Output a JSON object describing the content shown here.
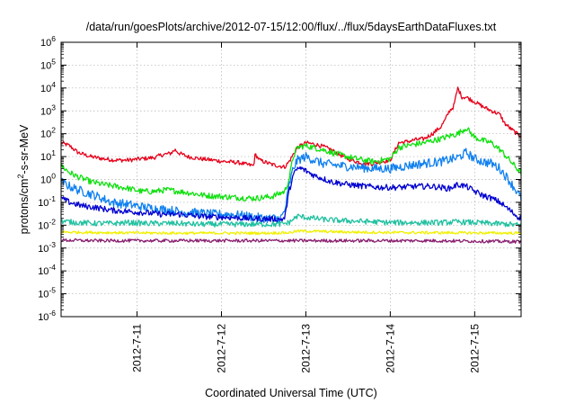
{
  "chart_data": {
    "type": "line",
    "title": "/data/run/goesPlots/archive/2012-07-15/12:00/flux/../flux/5daysEarthDataFluxes.txt",
    "xlabel": "Coordinated Universal Time (UTC)",
    "ylabel": {
      "pre": "protons/cm",
      "sup": "2",
      "post": "-s-sr-MeV"
    },
    "yscale": "log",
    "ylim": [
      1e-06,
      1000000.0
    ],
    "xlim": [
      10.1,
      15.55
    ],
    "grid": true,
    "y_ticks": [
      {
        "value": 1e-06,
        "mant": "10",
        "exp": "-6"
      },
      {
        "value": 1e-05,
        "mant": "10",
        "exp": "-5"
      },
      {
        "value": 0.0001,
        "mant": "10",
        "exp": "-4"
      },
      {
        "value": 0.001,
        "mant": "10",
        "exp": "-3"
      },
      {
        "value": 0.01,
        "mant": "10",
        "exp": "-2"
      },
      {
        "value": 0.1,
        "mant": "10",
        "exp": "-1"
      },
      {
        "value": 1,
        "mant": "10",
        "exp": "0"
      },
      {
        "value": 10.0,
        "mant": "10",
        "exp": "1"
      },
      {
        "value": 100.0,
        "mant": "10",
        "exp": "2"
      },
      {
        "value": 1000.0,
        "mant": "10",
        "exp": "3"
      },
      {
        "value": 10000.0,
        "mant": "10",
        "exp": "4"
      },
      {
        "value": 100000.0,
        "mant": "10",
        "exp": "5"
      },
      {
        "value": 1000000.0,
        "mant": "10",
        "exp": "6"
      }
    ],
    "x_ticks": [
      {
        "value": 11,
        "label": "2012-7-11"
      },
      {
        "value": 12,
        "label": "2012-7-12"
      },
      {
        "value": 13,
        "label": "2012-7-13"
      },
      {
        "value": 14,
        "label": "2012-7-14"
      },
      {
        "value": 15,
        "label": "2012-7-15"
      }
    ],
    "series": [
      {
        "color": "#e6001a",
        "noise": 0.09,
        "points": [
          [
            10.1,
            40
          ],
          [
            10.2,
            30
          ],
          [
            10.3,
            15
          ],
          [
            10.45,
            10
          ],
          [
            10.6,
            8
          ],
          [
            10.75,
            7
          ],
          [
            10.9,
            7
          ],
          [
            11.05,
            8
          ],
          [
            11.2,
            9
          ],
          [
            11.3,
            12
          ],
          [
            11.4,
            14
          ],
          [
            11.45,
            20
          ],
          [
            11.5,
            14
          ],
          [
            11.6,
            10
          ],
          [
            11.75,
            8
          ],
          [
            11.9,
            7
          ],
          [
            12.05,
            6
          ],
          [
            12.2,
            5.5
          ],
          [
            12.3,
            4.5
          ],
          [
            12.38,
            4
          ],
          [
            12.4,
            13
          ],
          [
            12.45,
            7
          ],
          [
            12.6,
            4.5
          ],
          [
            12.75,
            3.5
          ],
          [
            12.8,
            6
          ],
          [
            12.9,
            25
          ],
          [
            13.0,
            40
          ],
          [
            13.1,
            35
          ],
          [
            13.2,
            28
          ],
          [
            13.3,
            20
          ],
          [
            13.4,
            12
          ],
          [
            13.5,
            8
          ],
          [
            13.6,
            6
          ],
          [
            13.7,
            5
          ],
          [
            13.8,
            5
          ],
          [
            13.9,
            6
          ],
          [
            14.0,
            7
          ],
          [
            14.1,
            40
          ],
          [
            14.2,
            45
          ],
          [
            14.3,
            55
          ],
          [
            14.4,
            60
          ],
          [
            14.5,
            100
          ],
          [
            14.6,
            200
          ],
          [
            14.65,
            400
          ],
          [
            14.7,
            1000
          ],
          [
            14.75,
            1500
          ],
          [
            14.8,
            10000
          ],
          [
            14.85,
            4000
          ],
          [
            14.9,
            4000
          ],
          [
            15.0,
            2500
          ],
          [
            15.1,
            1500
          ],
          [
            15.2,
            1000
          ],
          [
            15.3,
            700
          ],
          [
            15.35,
            300
          ],
          [
            15.4,
            200
          ],
          [
            15.5,
            100
          ],
          [
            15.55,
            80
          ]
        ]
      },
      {
        "color": "#10e010",
        "noise": 0.13,
        "points": [
          [
            10.1,
            4
          ],
          [
            10.2,
            2
          ],
          [
            10.3,
            1.3
          ],
          [
            10.45,
            0.8
          ],
          [
            10.6,
            0.6
          ],
          [
            10.75,
            0.5
          ],
          [
            10.9,
            0.4
          ],
          [
            11.05,
            0.3
          ],
          [
            11.2,
            0.3
          ],
          [
            11.35,
            0.35
          ],
          [
            11.5,
            0.3
          ],
          [
            11.65,
            0.25
          ],
          [
            11.8,
            0.2
          ],
          [
            12.0,
            0.18
          ],
          [
            12.2,
            0.16
          ],
          [
            12.4,
            0.15
          ],
          [
            12.6,
            0.18
          ],
          [
            12.75,
            0.3
          ],
          [
            12.8,
            1
          ],
          [
            12.85,
            10
          ],
          [
            12.9,
            25
          ],
          [
            13.0,
            30
          ],
          [
            13.2,
            20
          ],
          [
            13.4,
            12
          ],
          [
            13.6,
            8
          ],
          [
            13.8,
            6
          ],
          [
            14.0,
            8
          ],
          [
            14.1,
            25
          ],
          [
            14.2,
            30
          ],
          [
            14.3,
            35
          ],
          [
            14.4,
            40
          ],
          [
            14.5,
            50
          ],
          [
            14.6,
            60
          ],
          [
            14.7,
            80
          ],
          [
            14.8,
            100
          ],
          [
            14.9,
            180
          ],
          [
            15.0,
            70
          ],
          [
            15.1,
            50
          ],
          [
            15.2,
            40
          ],
          [
            15.3,
            20
          ],
          [
            15.4,
            8
          ],
          [
            15.5,
            3
          ],
          [
            15.55,
            2
          ]
        ]
      },
      {
        "color": "#1080f0",
        "noise": 0.2,
        "points": [
          [
            10.1,
            0.8
          ],
          [
            10.2,
            0.5
          ],
          [
            10.3,
            0.35
          ],
          [
            10.5,
            0.2
          ],
          [
            10.7,
            0.1
          ],
          [
            10.9,
            0.08
          ],
          [
            11.1,
            0.06
          ],
          [
            11.3,
            0.05
          ],
          [
            11.5,
            0.04
          ],
          [
            11.7,
            0.035
          ],
          [
            11.9,
            0.03
          ],
          [
            12.1,
            0.03
          ],
          [
            12.3,
            0.025
          ],
          [
            12.5,
            0.02
          ],
          [
            12.7,
            0.02
          ],
          [
            12.75,
            0.04
          ],
          [
            12.8,
            0.5
          ],
          [
            12.85,
            3
          ],
          [
            12.9,
            7
          ],
          [
            13.0,
            10
          ],
          [
            13.1,
            7
          ],
          [
            13.2,
            5
          ],
          [
            13.4,
            4
          ],
          [
            13.6,
            3.5
          ],
          [
            13.8,
            3
          ],
          [
            14.0,
            3
          ],
          [
            14.2,
            4
          ],
          [
            14.4,
            5
          ],
          [
            14.6,
            6
          ],
          [
            14.8,
            9
          ],
          [
            14.9,
            15
          ],
          [
            15.0,
            8
          ],
          [
            15.1,
            6
          ],
          [
            15.2,
            5
          ],
          [
            15.3,
            3
          ],
          [
            15.4,
            1
          ],
          [
            15.5,
            0.3
          ],
          [
            15.55,
            0.15
          ]
        ]
      },
      {
        "color": "#0000d0",
        "noise": 0.13,
        "points": [
          [
            10.1,
            0.15
          ],
          [
            10.2,
            0.1
          ],
          [
            10.35,
            0.07
          ],
          [
            10.5,
            0.06
          ],
          [
            10.7,
            0.045
          ],
          [
            10.9,
            0.04
          ],
          [
            11.1,
            0.035
          ],
          [
            11.3,
            0.03
          ],
          [
            11.5,
            0.03
          ],
          [
            11.7,
            0.025
          ],
          [
            11.9,
            0.023
          ],
          [
            12.1,
            0.022
          ],
          [
            12.3,
            0.02
          ],
          [
            12.5,
            0.019
          ],
          [
            12.7,
            0.018
          ],
          [
            12.75,
            0.02
          ],
          [
            12.8,
            0.3
          ],
          [
            12.85,
            1.5
          ],
          [
            12.9,
            3
          ],
          [
            12.95,
            3
          ],
          [
            13.1,
            1.5
          ],
          [
            13.3,
            0.8
          ],
          [
            13.5,
            0.6
          ],
          [
            13.7,
            0.5
          ],
          [
            13.9,
            0.45
          ],
          [
            14.1,
            0.45
          ],
          [
            14.3,
            0.5
          ],
          [
            14.5,
            0.5
          ],
          [
            14.7,
            0.4
          ],
          [
            14.8,
            0.6
          ],
          [
            14.9,
            0.5
          ],
          [
            15.0,
            0.3
          ],
          [
            15.1,
            0.2
          ],
          [
            15.2,
            0.15
          ],
          [
            15.3,
            0.1
          ],
          [
            15.4,
            0.05
          ],
          [
            15.5,
            0.025
          ],
          [
            15.55,
            0.02
          ]
        ]
      },
      {
        "color": "#20c0a0",
        "noise": 0.12,
        "points": [
          [
            10.1,
            0.015
          ],
          [
            10.3,
            0.013
          ],
          [
            10.5,
            0.012
          ],
          [
            10.7,
            0.012
          ],
          [
            10.9,
            0.013
          ],
          [
            11.1,
            0.012
          ],
          [
            11.3,
            0.012
          ],
          [
            11.5,
            0.012
          ],
          [
            11.7,
            0.011
          ],
          [
            11.9,
            0.011
          ],
          [
            12.1,
            0.011
          ],
          [
            12.3,
            0.011
          ],
          [
            12.5,
            0.011
          ],
          [
            12.7,
            0.011
          ],
          [
            12.8,
            0.013
          ],
          [
            12.9,
            0.025
          ],
          [
            13.0,
            0.022
          ],
          [
            13.2,
            0.018
          ],
          [
            13.4,
            0.016
          ],
          [
            13.6,
            0.015
          ],
          [
            13.8,
            0.014
          ],
          [
            14.0,
            0.013
          ],
          [
            14.2,
            0.013
          ],
          [
            14.4,
            0.013
          ],
          [
            14.6,
            0.013
          ],
          [
            14.8,
            0.014
          ],
          [
            15.0,
            0.013
          ],
          [
            15.2,
            0.012
          ],
          [
            15.4,
            0.011
          ],
          [
            15.55,
            0.01
          ]
        ]
      },
      {
        "color": "#f0f000",
        "noise": 0.06,
        "points": [
          [
            10.1,
            0.005
          ],
          [
            10.5,
            0.0048
          ],
          [
            11.0,
            0.0046
          ],
          [
            11.5,
            0.0045
          ],
          [
            12.0,
            0.0045
          ],
          [
            12.5,
            0.0045
          ],
          [
            12.8,
            0.0047
          ],
          [
            12.9,
            0.0055
          ],
          [
            13.0,
            0.0055
          ],
          [
            13.5,
            0.005
          ],
          [
            14.0,
            0.0048
          ],
          [
            14.5,
            0.0047
          ],
          [
            15.0,
            0.0046
          ],
          [
            15.55,
            0.0045
          ]
        ]
      },
      {
        "color": "#8a2070",
        "noise": 0.07,
        "points": [
          [
            10.1,
            0.0022
          ],
          [
            10.5,
            0.0021
          ],
          [
            11.0,
            0.0021
          ],
          [
            11.5,
            0.0021
          ],
          [
            12.0,
            0.0021
          ],
          [
            12.5,
            0.0021
          ],
          [
            13.0,
            0.0021
          ],
          [
            13.5,
            0.0021
          ],
          [
            14.0,
            0.0021
          ],
          [
            14.5,
            0.0021
          ],
          [
            15.0,
            0.002
          ],
          [
            15.55,
            0.0019
          ]
        ]
      }
    ]
  }
}
